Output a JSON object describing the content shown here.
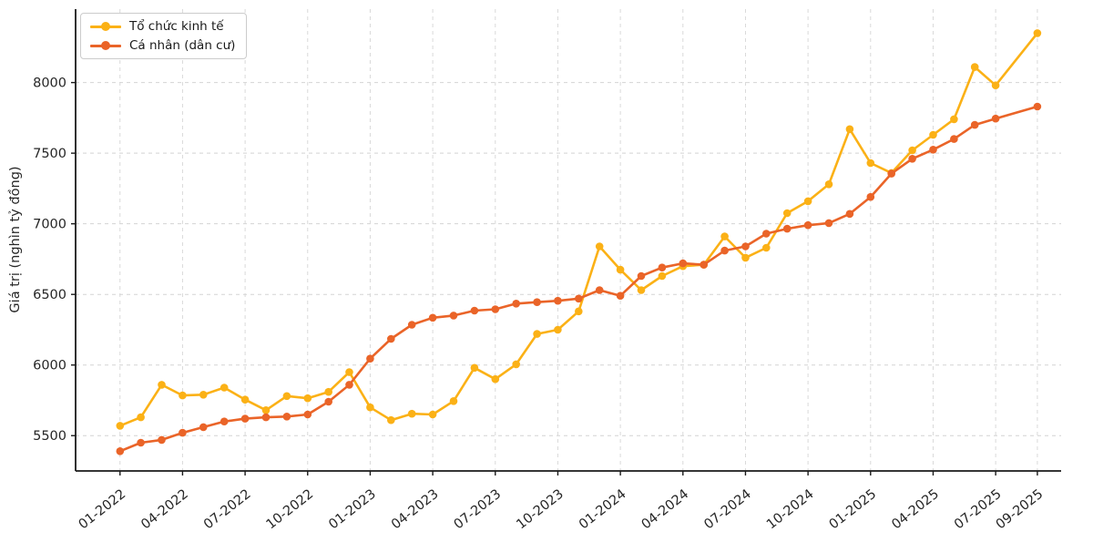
{
  "chart_data": {
    "type": "line",
    "title": "",
    "xlabel": "",
    "ylabel": "Giá trị (nghìn tỷ đồng)",
    "grid": true,
    "legend_position": "top-left",
    "ylim": [
      5250,
      8520
    ],
    "y_ticks": [
      5500,
      6000,
      6500,
      7000,
      7500,
      8000
    ],
    "x_tick_labels": [
      "01-2022",
      "04-2022",
      "07-2022",
      "10-2022",
      "01-2023",
      "04-2023",
      "07-2023",
      "10-2023",
      "01-2024",
      "04-2024",
      "07-2024",
      "10-2024",
      "01-2025",
      "04-2025",
      "07-2025",
      "09-2025"
    ],
    "x_months": [
      "01-2022",
      "02-2022",
      "03-2022",
      "04-2022",
      "05-2022",
      "06-2022",
      "07-2022",
      "08-2022",
      "09-2022",
      "10-2022",
      "11-2022",
      "12-2022",
      "01-2023",
      "02-2023",
      "03-2023",
      "04-2023",
      "05-2023",
      "06-2023",
      "07-2023",
      "08-2023",
      "09-2023",
      "10-2023",
      "11-2023",
      "12-2023",
      "01-2024",
      "02-2024",
      "03-2024",
      "04-2024",
      "05-2024",
      "06-2024",
      "07-2024",
      "08-2024",
      "09-2024",
      "10-2024",
      "11-2024",
      "12-2024",
      "01-2025",
      "02-2025",
      "03-2025",
      "04-2025",
      "05-2025",
      "06-2025",
      "07-2025",
      "09-2025"
    ],
    "series": [
      {
        "name": "Tổ chức kinh tế",
        "color": "#FBB116",
        "marker": "circle",
        "values": [
          5570,
          5630,
          5860,
          5785,
          5790,
          5840,
          5755,
          5680,
          5780,
          5765,
          5810,
          5950,
          5700,
          5610,
          5655,
          5650,
          5745,
          5980,
          5900,
          6005,
          6220,
          6250,
          6380,
          6840,
          6675,
          6530,
          6630,
          6700,
          6710,
          6910,
          6760,
          6830,
          7075,
          7160,
          7280,
          7670,
          7430,
          7360,
          7520,
          7630,
          7740,
          8110,
          7980,
          8350
        ]
      },
      {
        "name": "Cá nhân (dân cư)",
        "color": "#EA6428",
        "marker": "circle",
        "values": [
          5390,
          5450,
          5470,
          5520,
          5560,
          5600,
          5620,
          5630,
          5635,
          5650,
          5740,
          5860,
          6045,
          6185,
          6285,
          6335,
          6350,
          6385,
          6395,
          6435,
          6445,
          6455,
          6470,
          6530,
          6490,
          6630,
          6690,
          6720,
          6710,
          6810,
          6840,
          6930,
          6965,
          6990,
          7005,
          7070,
          7190,
          7355,
          7460,
          7525,
          7600,
          7700,
          7745,
          7830
        ]
      }
    ]
  }
}
